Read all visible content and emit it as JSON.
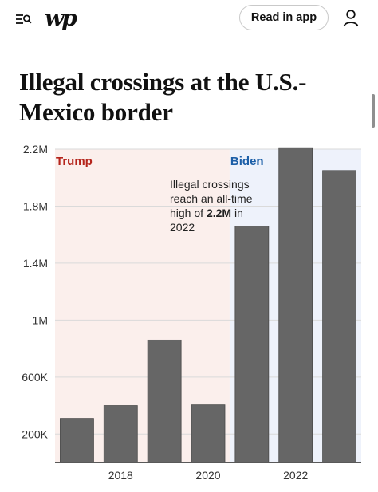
{
  "header": {
    "menu_icon": "menu-search-icon",
    "logo_text": "wp",
    "read_in_app_label": "Read in app",
    "account_icon": "user-icon"
  },
  "article": {
    "headline": "Illegal crossings at the U.S.-Mexico border"
  },
  "chart_data": {
    "type": "bar",
    "categories": [
      "2017",
      "2018",
      "2019",
      "2020",
      "2021",
      "2022",
      "2023"
    ],
    "values": [
      310000,
      400000,
      860000,
      405000,
      1660000,
      2210000,
      2050000
    ],
    "bar_color": "#666666",
    "x_tick_labels": [
      "2018",
      "2020",
      "2022"
    ],
    "y_ticks": [
      200000,
      600000,
      1000000,
      1400000,
      1800000,
      2200000
    ],
    "y_tick_labels": [
      "200K",
      "600K",
      "1M",
      "1.4M",
      "1.8M",
      "2.2M"
    ],
    "ylim": [
      0,
      2200000
    ],
    "grid": true,
    "periods": [
      {
        "label": "Trump",
        "from": "2017",
        "to": "2020",
        "text_color": "#b5241b",
        "shade_color": "#fbefec"
      },
      {
        "label": "Biden",
        "from": "2021",
        "to": "2023",
        "text_color": "#1c5fa8",
        "shade_color": "#eef2fb"
      }
    ],
    "annotation": {
      "lines": [
        "Illegal crossings",
        "reach an all-time",
        "high of "
      ],
      "bold": "2.2M",
      "after_bold": " in",
      "last_line": "2022"
    }
  }
}
